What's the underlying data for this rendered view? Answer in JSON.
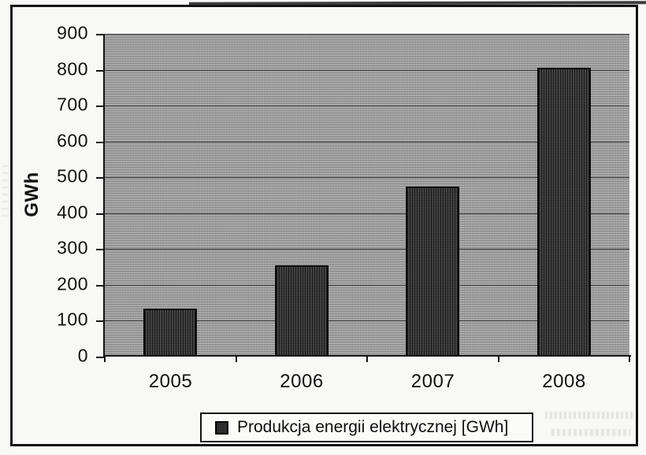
{
  "figure": {
    "kind": "scanned bar chart figure",
    "title": ""
  },
  "chart_data": {
    "type": "bar",
    "title": "",
    "categories": [
      "2005",
      "2006",
      "2007",
      "2008"
    ],
    "series": [
      {
        "name": "Produkcja energii elektrycznej [GWh]",
        "values": [
          135,
          255,
          475,
          805
        ]
      }
    ],
    "xlabel": "",
    "ylabel": "GWh",
    "ylim": [
      0,
      900
    ],
    "yticks": [
      0,
      100,
      200,
      300,
      400,
      500,
      600,
      700,
      800,
      900
    ],
    "grid": "horizontal",
    "legend_position": "bottom",
    "plot_background": "gray-halftone",
    "bar_style": "dark-halftone-vertical-stripes"
  },
  "axes": {
    "y_axis_label": "GWh"
  },
  "legend": {
    "swatch_icon": "halftone-square-icon",
    "label": "Produkcja energii elektrycznej [GWh]"
  },
  "colors": {
    "paper": "#f8f8f6",
    "plot_fill_average": "#aaaaaa",
    "bar_fill_average": "#3d3d3d",
    "ink": "#121212",
    "gridline": "#333333"
  }
}
